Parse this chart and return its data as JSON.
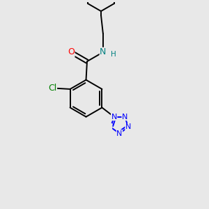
{
  "background_color": "#e8e8e8",
  "bond_color": "#000000",
  "atom_colors": {
    "O": "#ff0000",
    "N": "#0000ff",
    "N_amide": "#008080",
    "Cl": "#008000",
    "C": "#000000"
  },
  "figsize": [
    3.0,
    3.0
  ],
  "dpi": 100
}
